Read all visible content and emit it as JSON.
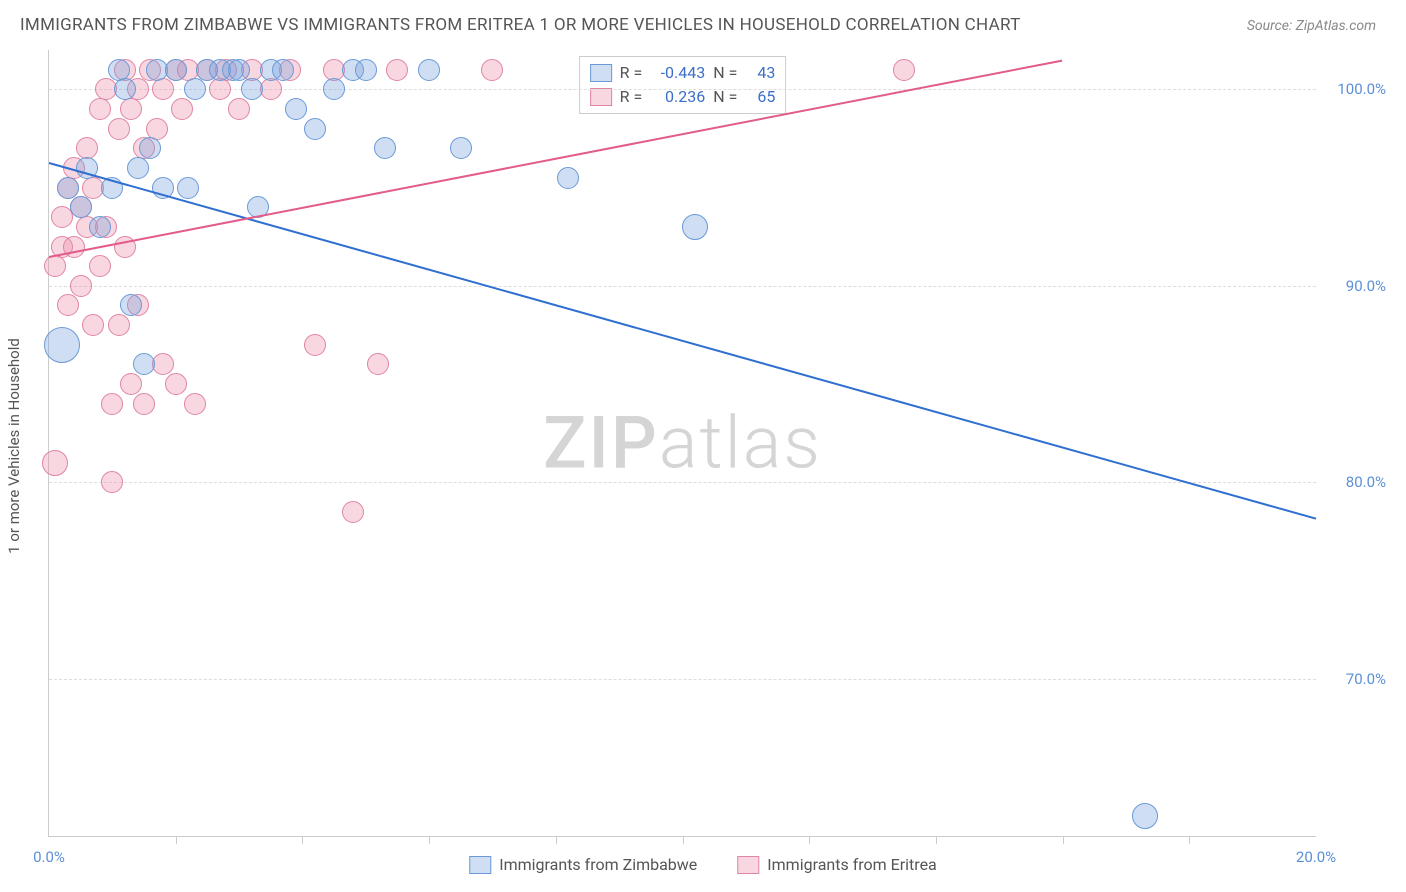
{
  "title": "IMMIGRANTS FROM ZIMBABWE VS IMMIGRANTS FROM ERITREA 1 OR MORE VEHICLES IN HOUSEHOLD CORRELATION CHART",
  "source": "Source: ZipAtlas.com",
  "y_axis_title": "1 or more Vehicles in Household",
  "watermark_a": "ZIP",
  "watermark_b": "atlas",
  "chart": {
    "type": "scatter",
    "xlim": [
      0,
      20
    ],
    "ylim": [
      62,
      102
    ],
    "x_ticks": [
      0,
      20
    ],
    "x_tick_labels": [
      "0.0%",
      "20.0%"
    ],
    "x_minor_ticks": [
      2,
      4,
      6,
      8,
      10,
      12,
      14,
      16,
      18
    ],
    "y_ticks": [
      70,
      80,
      90,
      100
    ],
    "y_tick_labels": [
      "70.0%",
      "80.0%",
      "90.0%",
      "100.0%"
    ],
    "background_color": "#ffffff",
    "grid_color": "#dddddd",
    "axis_label_color": "#5b8fd6",
    "series": {
      "zimbabwe": {
        "label": "Immigrants from Zimbabwe",
        "fill": "rgba(120,160,220,0.35)",
        "stroke": "#6a9ad6",
        "stroke_width": 1,
        "trend_color": "#2f6fd0",
        "trend": {
          "x1": 0,
          "y1": 96.3,
          "x2": 20,
          "y2": 78.2
        },
        "R": "-0.443",
        "N": "43",
        "marker_radius": 11,
        "points": [
          {
            "x": 0.3,
            "y": 95,
            "r": 11
          },
          {
            "x": 0.5,
            "y": 94,
            "r": 11
          },
          {
            "x": 0.6,
            "y": 96,
            "r": 11
          },
          {
            "x": 0.8,
            "y": 93,
            "r": 11
          },
          {
            "x": 0.2,
            "y": 87,
            "r": 18
          },
          {
            "x": 1.0,
            "y": 95,
            "r": 11
          },
          {
            "x": 1.1,
            "y": 101,
            "r": 11
          },
          {
            "x": 1.2,
            "y": 100,
            "r": 11
          },
          {
            "x": 1.3,
            "y": 89,
            "r": 11
          },
          {
            "x": 1.4,
            "y": 96,
            "r": 11
          },
          {
            "x": 1.5,
            "y": 86,
            "r": 11
          },
          {
            "x": 1.6,
            "y": 97,
            "r": 11
          },
          {
            "x": 1.7,
            "y": 101,
            "r": 11
          },
          {
            "x": 1.8,
            "y": 95,
            "r": 11
          },
          {
            "x": 2.0,
            "y": 101,
            "r": 11
          },
          {
            "x": 2.2,
            "y": 95,
            "r": 11
          },
          {
            "x": 2.3,
            "y": 100,
            "r": 11
          },
          {
            "x": 2.5,
            "y": 101,
            "r": 11
          },
          {
            "x": 2.7,
            "y": 101,
            "r": 11
          },
          {
            "x": 2.9,
            "y": 101,
            "r": 11
          },
          {
            "x": 3.0,
            "y": 101,
            "r": 11
          },
          {
            "x": 3.2,
            "y": 100,
            "r": 11
          },
          {
            "x": 3.3,
            "y": 94,
            "r": 11
          },
          {
            "x": 3.5,
            "y": 101,
            "r": 11
          },
          {
            "x": 3.7,
            "y": 101,
            "r": 11
          },
          {
            "x": 3.9,
            "y": 99,
            "r": 11
          },
          {
            "x": 4.2,
            "y": 98,
            "r": 11
          },
          {
            "x": 4.5,
            "y": 100,
            "r": 11
          },
          {
            "x": 4.8,
            "y": 101,
            "r": 11
          },
          {
            "x": 5.0,
            "y": 101,
            "r": 11
          },
          {
            "x": 5.3,
            "y": 97,
            "r": 11
          },
          {
            "x": 6.0,
            "y": 101,
            "r": 11
          },
          {
            "x": 6.5,
            "y": 97,
            "r": 11
          },
          {
            "x": 8.2,
            "y": 95.5,
            "r": 11
          },
          {
            "x": 10.2,
            "y": 93,
            "r": 13
          },
          {
            "x": 17.3,
            "y": 63,
            "r": 13
          }
        ]
      },
      "eritrea": {
        "label": "Immigrants from Eritrea",
        "fill": "rgba(235,140,170,0.35)",
        "stroke": "#e085a5",
        "stroke_width": 1,
        "trend_color": "#e35b8a",
        "trend": {
          "x1": 0,
          "y1": 91.5,
          "x2": 16,
          "y2": 101.5
        },
        "R": "0.236",
        "N": "65",
        "marker_radius": 11,
        "points": [
          {
            "x": 0.1,
            "y": 91,
            "r": 11
          },
          {
            "x": 0.2,
            "y": 92,
            "r": 11
          },
          {
            "x": 0.2,
            "y": 93.5,
            "r": 11
          },
          {
            "x": 0.3,
            "y": 95,
            "r": 11
          },
          {
            "x": 0.3,
            "y": 89,
            "r": 11
          },
          {
            "x": 0.1,
            "y": 81,
            "r": 13
          },
          {
            "x": 0.4,
            "y": 96,
            "r": 11
          },
          {
            "x": 0.4,
            "y": 92,
            "r": 11
          },
          {
            "x": 0.5,
            "y": 94,
            "r": 11
          },
          {
            "x": 0.5,
            "y": 90,
            "r": 11
          },
          {
            "x": 0.6,
            "y": 97,
            "r": 11
          },
          {
            "x": 0.6,
            "y": 93,
            "r": 11
          },
          {
            "x": 0.7,
            "y": 88,
            "r": 11
          },
          {
            "x": 0.7,
            "y": 95,
            "r": 11
          },
          {
            "x": 0.8,
            "y": 99,
            "r": 11
          },
          {
            "x": 0.8,
            "y": 91,
            "r": 11
          },
          {
            "x": 0.9,
            "y": 100,
            "r": 11
          },
          {
            "x": 0.9,
            "y": 93,
            "r": 11
          },
          {
            "x": 1.0,
            "y": 84,
            "r": 11
          },
          {
            "x": 1.0,
            "y": 80,
            "r": 11
          },
          {
            "x": 1.1,
            "y": 98,
            "r": 11
          },
          {
            "x": 1.1,
            "y": 88,
            "r": 11
          },
          {
            "x": 1.2,
            "y": 101,
            "r": 11
          },
          {
            "x": 1.2,
            "y": 92,
            "r": 11
          },
          {
            "x": 1.3,
            "y": 99,
            "r": 11
          },
          {
            "x": 1.3,
            "y": 85,
            "r": 11
          },
          {
            "x": 1.4,
            "y": 100,
            "r": 11
          },
          {
            "x": 1.4,
            "y": 89,
            "r": 11
          },
          {
            "x": 1.5,
            "y": 97,
            "r": 11
          },
          {
            "x": 1.5,
            "y": 84,
            "r": 11
          },
          {
            "x": 1.6,
            "y": 101,
            "r": 11
          },
          {
            "x": 1.7,
            "y": 98,
            "r": 11
          },
          {
            "x": 1.8,
            "y": 100,
            "r": 11
          },
          {
            "x": 1.8,
            "y": 86,
            "r": 11
          },
          {
            "x": 2.0,
            "y": 101,
            "r": 11
          },
          {
            "x": 2.0,
            "y": 85,
            "r": 11
          },
          {
            "x": 2.1,
            "y": 99,
            "r": 11
          },
          {
            "x": 2.2,
            "y": 101,
            "r": 11
          },
          {
            "x": 2.3,
            "y": 84,
            "r": 11
          },
          {
            "x": 2.5,
            "y": 101,
            "r": 11
          },
          {
            "x": 2.7,
            "y": 100,
            "r": 11
          },
          {
            "x": 2.8,
            "y": 101,
            "r": 11
          },
          {
            "x": 3.0,
            "y": 99,
            "r": 11
          },
          {
            "x": 3.2,
            "y": 101,
            "r": 11
          },
          {
            "x": 3.5,
            "y": 100,
            "r": 11
          },
          {
            "x": 3.8,
            "y": 101,
            "r": 11
          },
          {
            "x": 4.2,
            "y": 87,
            "r": 11
          },
          {
            "x": 4.5,
            "y": 101,
            "r": 11
          },
          {
            "x": 4.8,
            "y": 78.5,
            "r": 11
          },
          {
            "x": 5.2,
            "y": 86,
            "r": 11
          },
          {
            "x": 5.5,
            "y": 101,
            "r": 11
          },
          {
            "x": 7.0,
            "y": 101,
            "r": 11
          },
          {
            "x": 13.5,
            "y": 101,
            "r": 11
          }
        ]
      }
    }
  },
  "legend_stats": {
    "row1": {
      "swatch_fill": "rgba(120,160,220,0.35)",
      "swatch_stroke": "#6a9ad6",
      "R_label": "R =",
      "R_val": "-0.443",
      "N_label": "N =",
      "N_val": "43"
    },
    "row2": {
      "swatch_fill": "rgba(235,140,170,0.35)",
      "swatch_stroke": "#e085a5",
      "R_label": "R =",
      "R_val": "0.236",
      "N_label": "N =",
      "N_val": "65"
    }
  },
  "bottom_legend": {
    "item1": {
      "swatch_fill": "rgba(120,160,220,0.35)",
      "swatch_stroke": "#6a9ad6",
      "label": "Immigrants from Zimbabwe"
    },
    "item2": {
      "swatch_fill": "rgba(235,140,170,0.35)",
      "swatch_stroke": "#e085a5",
      "label": "Immigrants from Eritrea"
    }
  }
}
